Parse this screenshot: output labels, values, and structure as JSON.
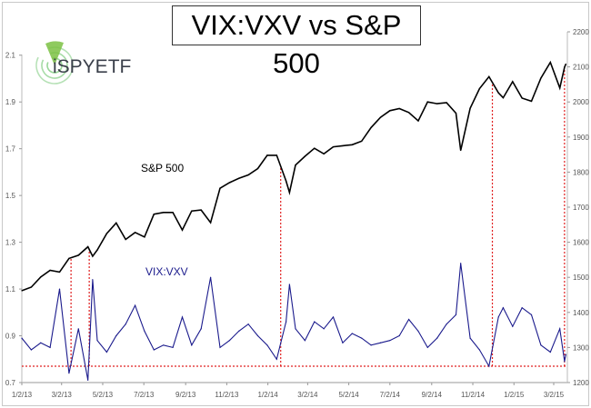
{
  "chart_data": {
    "type": "line",
    "title": "VIX:VXV vs S&P 500",
    "logo_text": "iSPYETF",
    "x": [
      "2013-01-02",
      "2013-01-16",
      "2013-01-30",
      "2013-02-13",
      "2013-02-27",
      "2013-03-13",
      "2013-03-27",
      "2013-04-10",
      "2013-04-17",
      "2013-04-24",
      "2013-05-08",
      "2013-05-22",
      "2013-06-05",
      "2013-06-19",
      "2013-07-03",
      "2013-07-17",
      "2013-07-31",
      "2013-08-14",
      "2013-08-28",
      "2013-09-11",
      "2013-09-25",
      "2013-10-09",
      "2013-10-23",
      "2013-11-06",
      "2013-11-20",
      "2013-12-04",
      "2013-12-18",
      "2014-01-01",
      "2014-01-15",
      "2014-01-29",
      "2014-02-03",
      "2014-02-12",
      "2014-02-26",
      "2014-03-12",
      "2014-03-26",
      "2014-04-09",
      "2014-04-23",
      "2014-05-07",
      "2014-05-21",
      "2014-06-04",
      "2014-06-18",
      "2014-07-02",
      "2014-07-16",
      "2014-07-30",
      "2014-08-13",
      "2014-08-27",
      "2014-09-10",
      "2014-09-24",
      "2014-10-08",
      "2014-10-15",
      "2014-10-29",
      "2014-11-12",
      "2014-11-26",
      "2014-12-10",
      "2014-12-17",
      "2014-12-31",
      "2015-01-14",
      "2015-01-28",
      "2015-02-11",
      "2015-02-25",
      "2015-03-11",
      "2015-03-18",
      "2015-03-20"
    ],
    "series": [
      {
        "name": "S&P 500",
        "axis": "right",
        "color": "#000000",
        "values": [
          1462,
          1472,
          1501,
          1520,
          1515,
          1554,
          1563,
          1587,
          1560,
          1578,
          1625,
          1655,
          1608,
          1628,
          1615,
          1680,
          1685,
          1685,
          1635,
          1689,
          1692,
          1656,
          1754,
          1770,
          1782,
          1792,
          1810,
          1848,
          1848,
          1775,
          1742,
          1820,
          1845,
          1868,
          1852,
          1872,
          1875,
          1878,
          1888,
          1927,
          1956,
          1975,
          1981,
          1970,
          1946,
          2000,
          1995,
          1998,
          1968,
          1862,
          1982,
          2038,
          2072,
          2026,
          2012,
          2058,
          2011,
          2002,
          2068,
          2113,
          2040,
          2099,
          2108
        ]
      },
      {
        "name": "VIX:VXV",
        "axis": "left",
        "color": "#1a1a8c",
        "values": [
          0.89,
          0.84,
          0.87,
          0.85,
          1.1,
          0.74,
          0.93,
          0.71,
          1.14,
          0.88,
          0.83,
          0.9,
          0.95,
          1.03,
          0.92,
          0.84,
          0.86,
          0.85,
          0.98,
          0.86,
          0.93,
          1.15,
          0.85,
          0.88,
          0.92,
          0.95,
          0.9,
          0.86,
          0.8,
          0.96,
          1.12,
          0.93,
          0.88,
          0.96,
          0.93,
          0.98,
          0.87,
          0.91,
          0.89,
          0.86,
          0.87,
          0.88,
          0.9,
          0.97,
          0.92,
          0.85,
          0.89,
          0.95,
          0.99,
          1.21,
          0.89,
          0.84,
          0.77,
          0.98,
          1.02,
          0.94,
          1.02,
          0.99,
          0.86,
          0.83,
          0.93,
          0.79,
          0.82
        ]
      }
    ],
    "threshold": {
      "value": 0.77,
      "color": "#e02020"
    },
    "signal_dates": [
      "2013-03-16",
      "2013-04-12",
      "2014-01-21",
      "2014-12-01",
      "2015-03-18"
    ],
    "left_axis": {
      "ylim": [
        0.7,
        2.2
      ],
      "ticks": [
        "0.7",
        "0.9",
        "1.1",
        "1.3",
        "1.5",
        "1.7",
        "1.9",
        "2.1"
      ]
    },
    "right_axis": {
      "ylim": [
        1200,
        2200
      ],
      "ticks": [
        "1200",
        "1300",
        "1400",
        "1500",
        "1600",
        "1700",
        "1800",
        "1900",
        "2000",
        "2100",
        "2200"
      ]
    },
    "x_ticks": [
      "1/2/13",
      "3/2/13",
      "5/2/13",
      "7/2/13",
      "9/2/13",
      "11/2/13",
      "1/2/14",
      "3/2/14",
      "5/2/14",
      "7/2/14",
      "9/2/14",
      "11/2/14",
      "1/2/15",
      "3/2/15"
    ],
    "x_tick_dates": [
      "2013-01-02",
      "2013-03-02",
      "2013-05-02",
      "2013-07-02",
      "2013-09-02",
      "2013-11-02",
      "2014-01-02",
      "2014-03-02",
      "2014-05-02",
      "2014-07-02",
      "2014-09-02",
      "2014-11-02",
      "2015-01-02",
      "2015-03-02"
    ],
    "annotations": [
      "S&P 500",
      "VIX:VXV"
    ],
    "grid": false
  }
}
